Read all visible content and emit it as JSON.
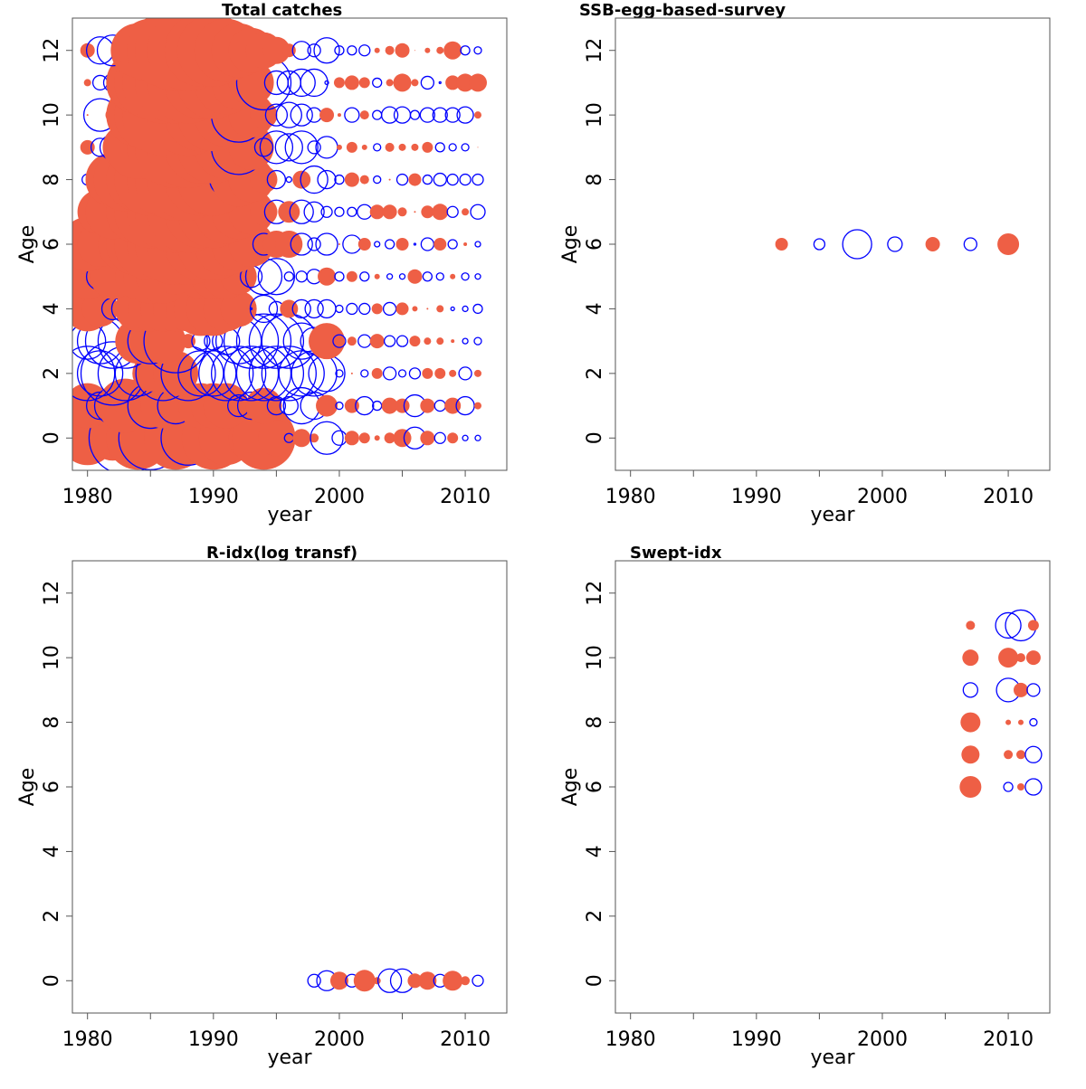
{
  "colors": {
    "positive": "#EE5F45",
    "negative": "#0000FF"
  },
  "chart_data": [
    {
      "type": "scatter",
      "subtype": "bubble",
      "title": "Total catches",
      "xlabel": "year",
      "ylabel": "Age",
      "xlim": [
        1978.8,
        2013.3
      ],
      "ylim": [
        -1,
        13
      ],
      "xticks": [
        1980,
        1985,
        1990,
        1995,
        2000,
        2005,
        2010
      ],
      "xticklabels": [
        "1980",
        "",
        "1990",
        "",
        "2000",
        "",
        "2010"
      ],
      "yticks": [
        0,
        2,
        4,
        6,
        8,
        10,
        12
      ],
      "yticklabels": [
        "0",
        "2",
        "4",
        "6",
        "8",
        "10",
        "12"
      ],
      "grid": false,
      "legend": "none",
      "encoding": "bubble size = |residual|; filled red = positive, open blue = negative",
      "years": [
        1980,
        1981,
        1982,
        1983,
        1984,
        1985,
        1986,
        1987,
        1988,
        1989,
        1990,
        1991,
        1992,
        1993,
        1994,
        1995,
        1996,
        1997,
        1998,
        1999,
        2000,
        2001,
        2002,
        2003,
        2004,
        2005,
        2006,
        2007,
        2008,
        2009,
        2010,
        2011
      ],
      "ages": [
        0,
        1,
        2,
        3,
        4,
        5,
        6,
        7,
        8,
        9,
        10,
        11,
        12
      ],
      "residuals": [
        [
          6,
          -2,
          5,
          -8,
          7,
          -7,
          -3,
          7,
          -6,
          -4,
          7,
          6,
          -2,
          5,
          7,
          4,
          -1,
          2,
          1,
          -3.6,
          -1.6,
          1.6,
          1.2,
          0.6,
          1.2,
          2,
          -2.4,
          1.6,
          -1.2,
          1.2,
          -0.6,
          -0.6
        ],
        [
          5,
          -3,
          -4,
          6,
          5,
          -5,
          5,
          -4,
          -2,
          5,
          5,
          5,
          -2.4,
          -3,
          4,
          -2,
          -2,
          -4,
          -3,
          2.4,
          -0.8,
          1.6,
          -2,
          -1,
          1.8,
          1.6,
          -2.4,
          1.6,
          -1.2,
          1.8,
          -2,
          0.8
        ],
        [
          -6,
          -5,
          -7,
          -6,
          -5,
          4,
          -6,
          5,
          -6,
          -5,
          -5,
          -6,
          -6,
          -6,
          -6,
          -6,
          -6,
          -5,
          -5,
          -4,
          -0.8,
          0.2,
          -0.8,
          1.2,
          -1.4,
          -0.8,
          -1.2,
          1.2,
          1.2,
          0.8,
          -1.4,
          0.8
        ],
        [
          -4,
          -5,
          -6,
          -6,
          5,
          -5,
          5,
          -7,
          1.6,
          -2,
          -2,
          -3,
          -5,
          -6,
          -6,
          -6,
          -6,
          -4,
          -3,
          4,
          -1.4,
          1,
          -1.4,
          1.6,
          -1.2,
          -1.2,
          1.2,
          0.8,
          0.8,
          0.4,
          -0.6,
          -0.8
        ],
        [
          5,
          4,
          -2.4,
          -3,
          5,
          5,
          5,
          5,
          5,
          6,
          6,
          5,
          4,
          -0.2,
          -3,
          -1.6,
          2,
          -2,
          -2,
          -2,
          -0.8,
          -1.2,
          -1.2,
          1.2,
          -1.4,
          1.4,
          0.6,
          0.2,
          0.8,
          -0.4,
          -0.6,
          -1
        ],
        [
          5,
          -3,
          5,
          -2,
          5,
          6,
          6,
          4,
          -1.6,
          5,
          5,
          5,
          4,
          -2.4,
          -4,
          -4,
          -1,
          -1.2,
          -1.6,
          2,
          -1,
          1.2,
          -1,
          0.6,
          -0.6,
          -0.6,
          1.6,
          -1,
          -0.8,
          0.6,
          -0.8,
          -0.6
        ],
        [
          6,
          5,
          -2,
          6,
          7,
          8,
          8,
          9,
          9,
          8,
          8,
          7,
          6,
          5,
          -2.4,
          3,
          3,
          -2.4,
          -1.4,
          -2.4,
          0.2,
          -2,
          1.4,
          -0.6,
          -1,
          1.4,
          -0.2,
          -1.4,
          1.4,
          -1,
          0.4,
          -0.6
        ],
        [
          1.6,
          5,
          6,
          -0.4,
          7,
          8,
          8,
          9,
          9,
          8,
          8,
          7,
          6,
          5,
          3,
          -2.6,
          2.4,
          -2.6,
          -2.2,
          -1.2,
          -1,
          -1,
          -1.6,
          1.6,
          1.6,
          1,
          0.2,
          1.4,
          1.8,
          -1.2,
          0.8,
          -1.6
        ],
        [
          -1.2,
          -3,
          6,
          7,
          7,
          8,
          8,
          9,
          9,
          8,
          8,
          -3.6,
          6,
          5,
          3,
          -2,
          -0.6,
          2,
          -3,
          -2,
          -1,
          1.6,
          1,
          -0.8,
          0.2,
          -1.2,
          1.4,
          -1,
          -1.4,
          -1.2,
          -1.2,
          -1.2
        ],
        [
          1.6,
          -2,
          -2.8,
          5,
          7,
          -0.8,
          8,
          9,
          9,
          8,
          8,
          7,
          -6,
          5,
          -2,
          -3.6,
          -3,
          -3.6,
          -1.4,
          -2.4,
          0.6,
          1.2,
          0.6,
          -0.8,
          1,
          0.8,
          0.8,
          1.2,
          -1,
          -0.8,
          -0.8,
          0.1
        ],
        [
          0.2,
          -3.6,
          1.6,
          -0.4,
          7,
          8,
          9,
          -1.6,
          9,
          8,
          8,
          7,
          -6,
          5,
          3,
          -2.4,
          -2.8,
          -2.4,
          -1.6,
          1.6,
          0.4,
          -1.6,
          1,
          -1,
          -1.8,
          -1.8,
          -1,
          -1.6,
          -1.6,
          -1.6,
          -1.8,
          0.8
        ],
        [
          0.8,
          -1.6,
          -2,
          1,
          7,
          8,
          9,
          9,
          9,
          8,
          8,
          7,
          6,
          5,
          -6,
          -2.6,
          -2.6,
          -3,
          -3,
          -0.4,
          1.2,
          1.6,
          1.2,
          -1,
          0.8,
          2,
          0.8,
          -1.4,
          -0.2,
          1.6,
          2,
          2
        ],
        [
          1.6,
          -3,
          -3.4,
          2,
          6,
          7,
          8,
          9,
          9,
          8,
          8,
          7,
          6,
          5,
          4,
          3,
          1.5,
          -2,
          -1.4,
          -2.8,
          -1,
          -1,
          -1.2,
          0.6,
          1,
          1.6,
          0.1,
          0.6,
          0.8,
          2,
          -1,
          -0.8
        ]
      ]
    },
    {
      "type": "scatter",
      "subtype": "bubble",
      "title": "SSB-egg-based-survey",
      "xlabel": "year",
      "ylabel": "Age",
      "xlim": [
        1978.8,
        2013.3
      ],
      "ylim": [
        -1,
        13
      ],
      "xticks": [
        1980,
        1985,
        1990,
        1995,
        2000,
        2005,
        2010
      ],
      "xticklabels": [
        "1980",
        "",
        "1990",
        "",
        "2000",
        "",
        "2010"
      ],
      "yticks": [
        0,
        2,
        4,
        6,
        8,
        10,
        12
      ],
      "yticklabels": [
        "0",
        "2",
        "4",
        "6",
        "8",
        "10",
        "12"
      ],
      "grid": false,
      "legend": "none",
      "points": [
        [
          1992,
          6,
          1.4
        ],
        [
          1995,
          6,
          -1.2
        ],
        [
          1998,
          6,
          -3.2
        ],
        [
          2001,
          6,
          -1.6
        ],
        [
          2004,
          6,
          1.6
        ],
        [
          2007,
          6,
          -1.4
        ],
        [
          2010,
          6,
          2.4
        ]
      ]
    },
    {
      "type": "scatter",
      "subtype": "bubble",
      "title": "R-idx(log transf)",
      "xlabel": "year",
      "ylabel": "Age",
      "xlim": [
        1978.8,
        2013.3
      ],
      "ylim": [
        -1,
        13
      ],
      "xticks": [
        1980,
        1985,
        1990,
        1995,
        2000,
        2005,
        2010
      ],
      "xticklabels": [
        "1980",
        "",
        "1990",
        "",
        "2000",
        "",
        "2010"
      ],
      "yticks": [
        0,
        2,
        4,
        6,
        8,
        10,
        12
      ],
      "yticklabels": [
        "0",
        "2",
        "4",
        "6",
        "8",
        "10",
        "12"
      ],
      "grid": false,
      "legend": "none",
      "points": [
        [
          1998,
          0,
          -1.4
        ],
        [
          1999,
          0,
          -2.2
        ],
        [
          2000,
          0,
          2
        ],
        [
          2001,
          0,
          -1.4
        ],
        [
          2002,
          0,
          2.4
        ],
        [
          2003,
          0,
          0.8
        ],
        [
          2004,
          0,
          -2.6
        ],
        [
          2005,
          0,
          -2.6
        ],
        [
          2006,
          0,
          1.6
        ],
        [
          2007,
          0,
          2
        ],
        [
          2008,
          0,
          -1.4
        ],
        [
          2009,
          0,
          2.2
        ],
        [
          2010,
          0,
          1
        ],
        [
          2011,
          0,
          -1.2
        ]
      ]
    },
    {
      "type": "scatter",
      "subtype": "bubble",
      "title": "Swept-idx",
      "xlabel": "year",
      "ylabel": "Age",
      "xlim": [
        1978.8,
        2013.3
      ],
      "ylim": [
        -1,
        13
      ],
      "xticks": [
        1980,
        1985,
        1990,
        1995,
        2000,
        2005,
        2010
      ],
      "xticklabels": [
        "1980",
        "",
        "1990",
        "",
        "2000",
        "",
        "2010"
      ],
      "yticks": [
        0,
        2,
        4,
        6,
        8,
        10,
        12
      ],
      "yticklabels": [
        "0",
        "2",
        "4",
        "6",
        "8",
        "10",
        "12"
      ],
      "grid": false,
      "legend": "none",
      "points": [
        [
          2007,
          11,
          1
        ],
        [
          2010,
          11,
          -2.8
        ],
        [
          2011,
          11,
          -3.4
        ],
        [
          2012,
          11,
          1.2
        ],
        [
          2007,
          10,
          1.8
        ],
        [
          2010,
          10,
          2.2
        ],
        [
          2011,
          10,
          1
        ],
        [
          2012,
          10,
          1.6
        ],
        [
          2007,
          9,
          -1.6
        ],
        [
          2010,
          9,
          -2.6
        ],
        [
          2011,
          9,
          1.6
        ],
        [
          2012,
          9,
          -1.4
        ],
        [
          2007,
          8,
          2.2
        ],
        [
          2010,
          8,
          0.6
        ],
        [
          2011,
          8,
          0.6
        ],
        [
          2012,
          8,
          -0.8
        ],
        [
          2007,
          7,
          2
        ],
        [
          2010,
          7,
          1
        ],
        [
          2011,
          7,
          1
        ],
        [
          2012,
          7,
          -1.8
        ],
        [
          2007,
          6,
          2.4
        ],
        [
          2010,
          6,
          -1
        ],
        [
          2011,
          6,
          0.8
        ],
        [
          2012,
          6,
          -1.8
        ]
      ]
    }
  ]
}
